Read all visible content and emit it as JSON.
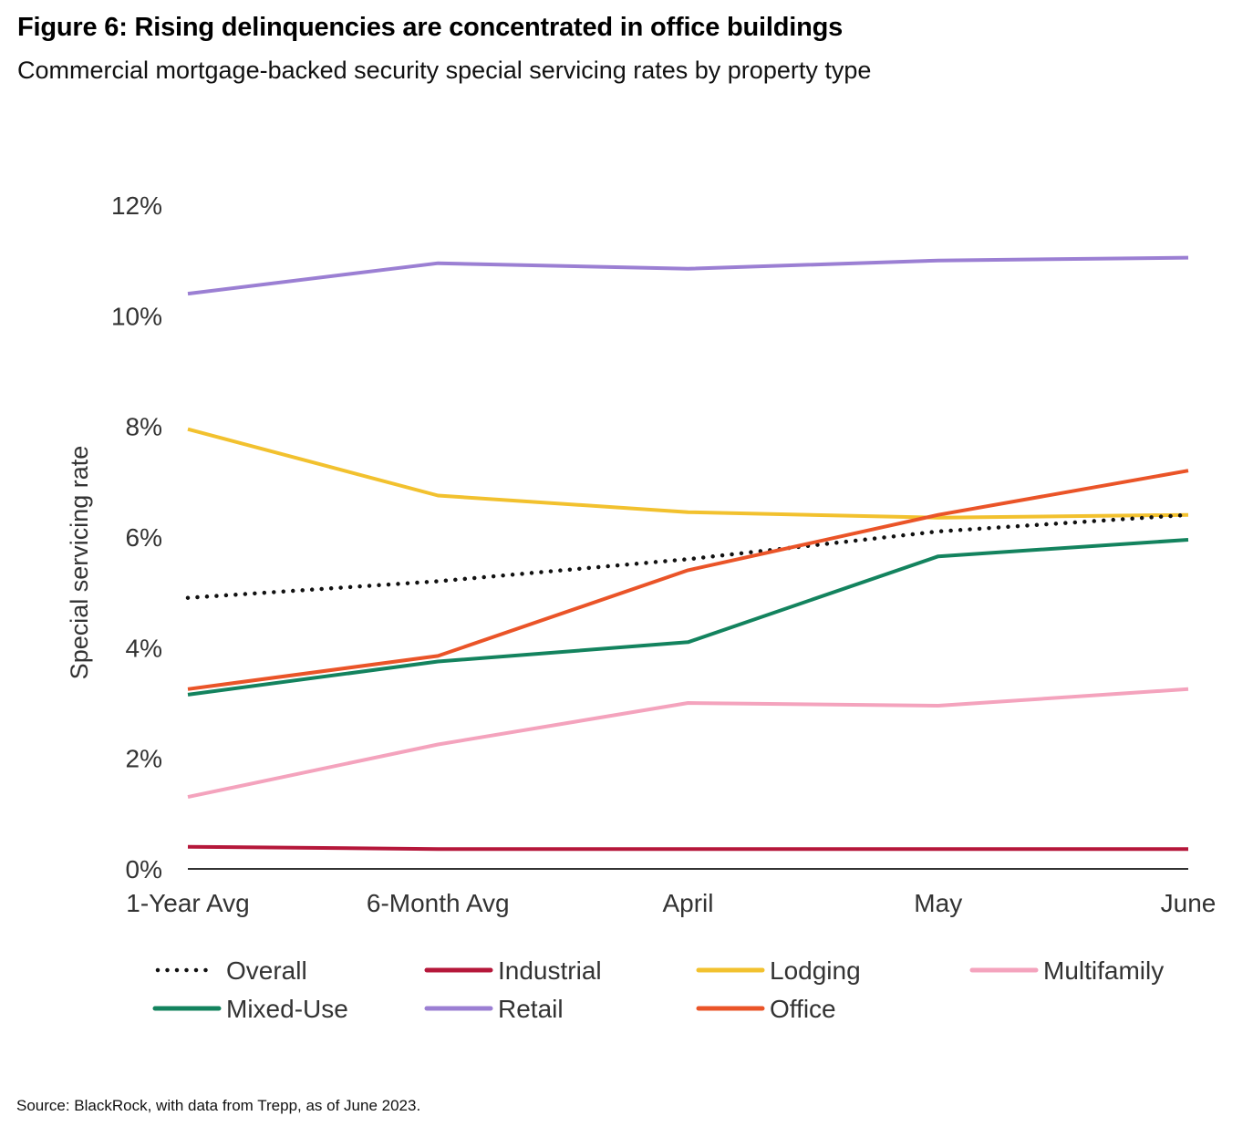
{
  "header": {
    "title": "Figure 6: Rising delinquencies are concentrated in office buildings",
    "subtitle": "Commercial mortgage-backed security special servicing rates by property type"
  },
  "footer": {
    "source": "Source: BlackRock, with data from Trepp, as of June 2023."
  },
  "chart_data": {
    "type": "line",
    "title": "Figure 6: Rising delinquencies are concentrated in office buildings",
    "subtitle": "Commercial mortgage-backed security special servicing rates by property type",
    "xlabel": "",
    "ylabel": "Special servicing rate",
    "categories": [
      "1-Year Avg",
      "6-Month Avg",
      "April",
      "May",
      "June"
    ],
    "ylim": [
      0,
      12
    ],
    "yticks": [
      0,
      2,
      4,
      6,
      8,
      10,
      12
    ],
    "ytick_labels": [
      "0%",
      "2%",
      "4%",
      "6%",
      "8%",
      "10%",
      "12%"
    ],
    "grid": false,
    "legend_position": "bottom",
    "series": [
      {
        "name": "Overall",
        "color": "#111111",
        "style": "dotted",
        "values": [
          4.9,
          5.2,
          5.6,
          6.1,
          6.4
        ]
      },
      {
        "name": "Industrial",
        "color": "#b5173a",
        "style": "solid",
        "values": [
          0.4,
          0.36,
          0.36,
          0.36,
          0.36
        ]
      },
      {
        "name": "Lodging",
        "color": "#f2c12e",
        "style": "solid",
        "values": [
          7.95,
          6.75,
          6.45,
          6.35,
          6.4
        ]
      },
      {
        "name": "Multifamily",
        "color": "#f4a3bd",
        "style": "solid",
        "values": [
          1.3,
          2.25,
          3.0,
          2.95,
          3.25
        ]
      },
      {
        "name": "Mixed-Use",
        "color": "#13835e",
        "style": "solid",
        "values": [
          3.15,
          3.75,
          4.1,
          5.65,
          5.95
        ]
      },
      {
        "name": "Retail",
        "color": "#9b7fd3",
        "style": "solid",
        "values": [
          10.4,
          10.95,
          10.85,
          11.0,
          11.05
        ]
      },
      {
        "name": "Office",
        "color": "#ea5428",
        "style": "solid",
        "values": [
          3.25,
          3.85,
          5.4,
          6.4,
          7.2
        ]
      }
    ]
  }
}
